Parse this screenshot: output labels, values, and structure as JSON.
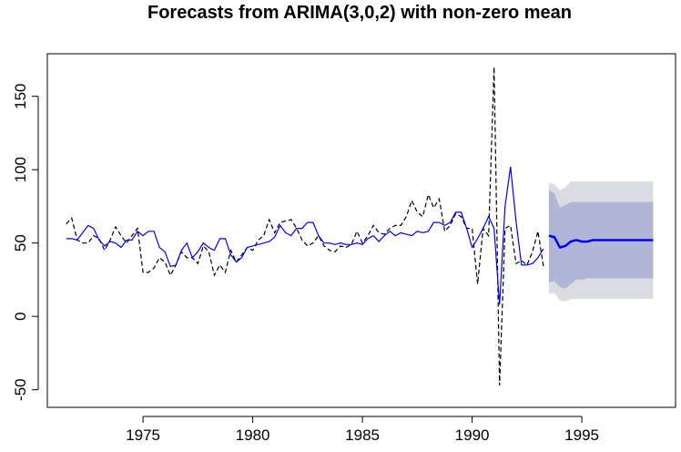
{
  "chart_data": {
    "type": "line",
    "title": "Forecasts from ARIMA(3,0,2) with non-zero mean",
    "x": [
      1971.5,
      1971.75,
      1972,
      1972.25,
      1972.5,
      1972.75,
      1973,
      1973.25,
      1973.5,
      1973.75,
      1974,
      1974.25,
      1974.5,
      1974.75,
      1975,
      1975.25,
      1975.5,
      1975.75,
      1976,
      1976.25,
      1976.5,
      1976.75,
      1977,
      1977.25,
      1977.5,
      1977.75,
      1978,
      1978.25,
      1978.5,
      1978.75,
      1979,
      1979.25,
      1979.5,
      1979.75,
      1980,
      1980.25,
      1980.5,
      1980.75,
      1981,
      1981.25,
      1981.5,
      1981.75,
      1982,
      1982.25,
      1982.5,
      1982.75,
      1983,
      1983.25,
      1983.5,
      1983.75,
      1984,
      1984.25,
      1984.5,
      1984.75,
      1985,
      1985.25,
      1985.5,
      1985.75,
      1986,
      1986.25,
      1986.5,
      1986.75,
      1987,
      1987.25,
      1987.5,
      1987.75,
      1988,
      1988.25,
      1988.5,
      1988.75,
      1989,
      1989.25,
      1989.5,
      1989.75,
      1990,
      1990.25,
      1990.5,
      1990.75,
      1991,
      1991.25,
      1991.5,
      1991.75,
      1992,
      1992.25,
      1992.5,
      1992.75,
      1993,
      1993.25
    ],
    "series": [
      {
        "color": "#000000",
        "dashed": true,
        "width": 1.2,
        "values": [
          63,
          67,
          52,
          50,
          50,
          55,
          53,
          45,
          52,
          61,
          55,
          50,
          55,
          60,
          30,
          30,
          33,
          40,
          37,
          28,
          35,
          44,
          40,
          40,
          36,
          48,
          44,
          28,
          35,
          30,
          45,
          37,
          42,
          47,
          45,
          52,
          55,
          66,
          57,
          64,
          65,
          66,
          60,
          52,
          48,
          50,
          55,
          48,
          45,
          44,
          48,
          47,
          49,
          58,
          50,
          55,
          62,
          57,
          56,
          60,
          62,
          62,
          68,
          79,
          71,
          68,
          83,
          74,
          80,
          58,
          62,
          70,
          68,
          60,
          60,
          22,
          60,
          55,
          170,
          -47,
          60,
          62,
          36,
          38,
          35,
          44,
          58,
          34
        ]
      },
      {
        "color": "#0000ff",
        "dashed": false,
        "width": 1.2,
        "values": [
          53,
          53,
          52,
          57,
          62,
          60,
          52,
          48,
          51,
          50,
          47,
          52,
          52,
          58,
          55,
          58,
          58,
          47,
          44,
          34,
          35,
          45,
          50,
          40,
          44,
          50,
          47,
          45,
          53,
          53,
          42,
          37,
          40,
          47,
          48,
          49,
          50,
          51,
          54,
          62,
          57,
          55,
          60,
          60,
          64,
          64,
          55,
          50,
          50,
          49,
          50,
          49,
          49,
          50,
          49,
          53,
          55,
          51,
          55,
          58,
          55,
          57,
          56,
          55,
          58,
          57,
          58,
          64,
          64,
          62,
          64,
          71,
          71,
          60,
          47,
          53,
          60,
          68,
          60,
          8,
          75,
          102,
          65,
          35,
          35,
          36,
          40,
          46
        ]
      }
    ],
    "forecast": {
      "x": [
        1993.5,
        1993.75,
        1994,
        1994.25,
        1994.5,
        1994.75,
        1995,
        1995.25,
        1995.5,
        1995.75,
        1996,
        1996.25,
        1996.5,
        1996.75,
        1997,
        1997.25,
        1997.5,
        1997.75,
        1998,
        1998.25
      ],
      "color": "#0000ff",
      "values": [
        55,
        54,
        47,
        48,
        51,
        52,
        51,
        51,
        52,
        52,
        52,
        52,
        52,
        52,
        52,
        52,
        52,
        52,
        52,
        52
      ],
      "bands": [
        {
          "color": "#dbdbe3",
          "lower": [
            15,
            16,
            11,
            10,
            12,
            12,
            12,
            12,
            12,
            12,
            12,
            12,
            12,
            12,
            12,
            12,
            12,
            12,
            12,
            12
          ],
          "upper": [
            91,
            90,
            86,
            88,
            92,
            92,
            92,
            92,
            92,
            92,
            92,
            92,
            92,
            92,
            92,
            92,
            92,
            92,
            92,
            92
          ]
        },
        {
          "color": "#b1b5d6",
          "lower": [
            23,
            24,
            20,
            19,
            22,
            25,
            25,
            26,
            26,
            26,
            26,
            26,
            26,
            26,
            26,
            26,
            26,
            26,
            26,
            26
          ],
          "upper": [
            86,
            84,
            74,
            76,
            78,
            78,
            78,
            78,
            78,
            78,
            78,
            78,
            78,
            78,
            78,
            78,
            78,
            78,
            78,
            78
          ]
        }
      ]
    },
    "xlim": [
      1970.64,
      1999.27
    ],
    "ylim": [
      -62,
      179
    ],
    "xticks": [
      1975,
      1980,
      1985,
      1990,
      1995
    ],
    "yticks": [
      -50,
      0,
      50,
      100,
      150
    ],
    "grid": false
  }
}
